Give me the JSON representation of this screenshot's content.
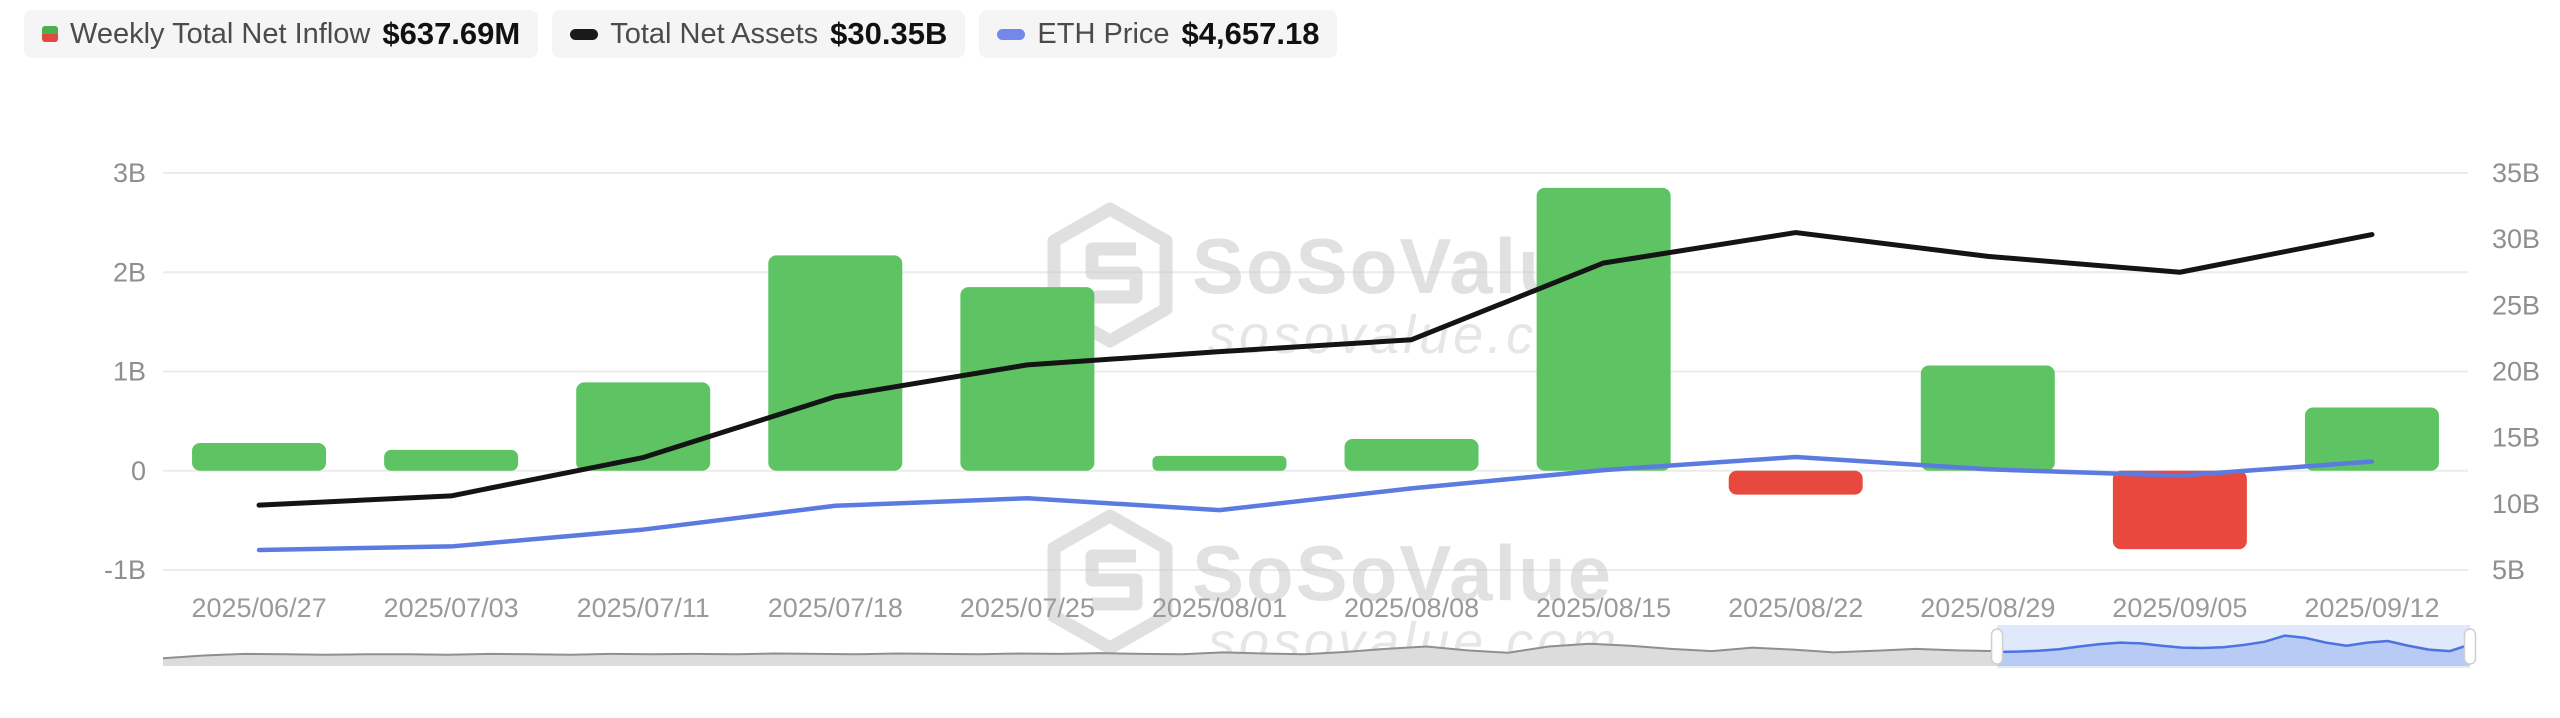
{
  "legend": {
    "items": [
      {
        "label": "Weekly Total Net Inflow",
        "value": "$637.69M",
        "icon": "inflow-split-square",
        "icon_colors": [
          "#4CAF50",
          "#E0493D"
        ]
      },
      {
        "label": "Total Net Assets",
        "value": "$30.35B",
        "icon": "black-dash",
        "icon_color": "#1A1A1A"
      },
      {
        "label": "ETH Price",
        "value": "$4,657.18",
        "icon": "blue-dash",
        "icon_color": "#7388E8"
      }
    ]
  },
  "watermark": {
    "brand": "SoSoValue",
    "domain": "sosovalue.com"
  },
  "colors": {
    "bar_positive": "#5EC463",
    "bar_negative": "#E8483D",
    "net_assets_line": "#141414",
    "eth_price_line": "#5B7BE0",
    "grid": "#EBEBEB",
    "axis_text": "#8F8F8F",
    "x_label_text": "#9A9A9A",
    "nav_history_fill": "#DCDCDC",
    "nav_history_line": "#8F8F8F",
    "nav_selection_bg": "#DFE9FB",
    "nav_selection_fill": "#B7CBF4",
    "nav_selection_line": "#4E73E0",
    "nav_handle_fill": "#FFFFFF",
    "nav_handle_border": "#CFCFCF"
  },
  "chart_data": {
    "type": "combo",
    "categories": [
      "2025/06/27",
      "2025/07/03",
      "2025/07/11",
      "2025/07/18",
      "2025/07/25",
      "2025/08/01",
      "2025/08/08",
      "2025/08/15",
      "2025/08/22",
      "2025/08/29",
      "2025/09/05",
      "2025/09/12"
    ],
    "series": [
      {
        "name": "Weekly Total Net Inflow",
        "type": "bar",
        "axis": "left",
        "unit": "USD millions",
        "values": [
          280,
          210,
          890,
          2170,
          1850,
          150,
          320,
          2850,
          -240,
          1060,
          -790,
          637.69
        ]
      },
      {
        "name": "Total Net Assets",
        "type": "line",
        "axis": "right",
        "unit": "USD billions",
        "values": [
          9.9,
          10.6,
          13.5,
          18.1,
          20.5,
          21.5,
          22.4,
          28.2,
          30.5,
          28.7,
          27.5,
          30.35
        ]
      },
      {
        "name": "ETH Price",
        "type": "line",
        "axis": "hidden",
        "unit": "USD",
        "values": [
          2425,
          2515,
          2940,
          3540,
          3730,
          3430,
          3980,
          4440,
          4770,
          4460,
          4300,
          4657.18
        ]
      }
    ],
    "left_axis": {
      "ticks": [
        "3B",
        "2B",
        "1B",
        "0",
        "-1B"
      ],
      "min_B": -1,
      "max_B": 3
    },
    "right_axis": {
      "ticks": [
        "35B",
        "30B",
        "25B",
        "20B",
        "15B",
        "10B",
        "5B"
      ],
      "min_B": 5,
      "max_B": 35
    },
    "grid": true,
    "legend_position": "top-left",
    "navigator": {
      "selection_start_frac": 0.795,
      "history": [
        0.2,
        0.27,
        0.31,
        0.3,
        0.29,
        0.3,
        0.3,
        0.29,
        0.31,
        0.3,
        0.29,
        0.31,
        0.3,
        0.31,
        0.3,
        0.32,
        0.31,
        0.3,
        0.32,
        0.31,
        0.3,
        0.32,
        0.31,
        0.33,
        0.31,
        0.3,
        0.35,
        0.32,
        0.3,
        0.36,
        0.44,
        0.5,
        0.4,
        0.34,
        0.5,
        0.57,
        0.52,
        0.44,
        0.38,
        0.47,
        0.42,
        0.35,
        0.39,
        0.44,
        0.4,
        0.38
      ],
      "window": [
        0.36,
        0.37,
        0.39,
        0.43,
        0.5,
        0.56,
        0.6,
        0.58,
        0.52,
        0.47,
        0.46,
        0.48,
        0.54,
        0.62,
        0.78,
        0.72,
        0.6,
        0.52,
        0.6,
        0.64,
        0.52,
        0.42,
        0.38,
        0.55
      ]
    }
  }
}
